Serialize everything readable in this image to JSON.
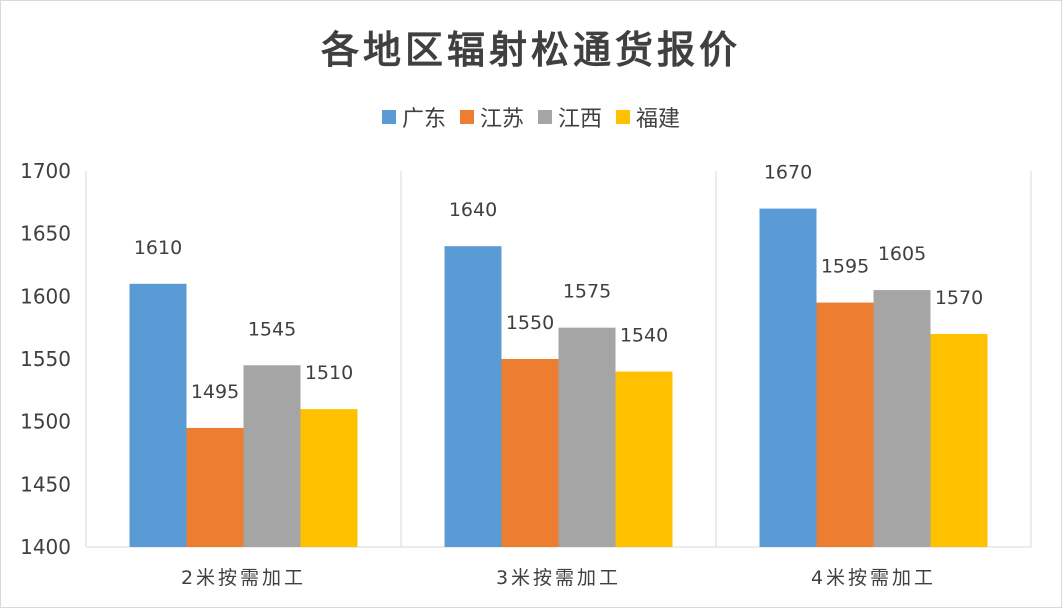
{
  "chart_data": {
    "type": "bar",
    "title": "各地区辐射松通货报价",
    "categories": [
      "2米按需加工",
      "3米按需加工",
      "4米按需加工"
    ],
    "series": [
      {
        "name": "广东",
        "color": "#5b9bd5",
        "values": [
          1610,
          1640,
          1670
        ]
      },
      {
        "name": "江苏",
        "color": "#ed7d31",
        "values": [
          1495,
          1550,
          1595
        ]
      },
      {
        "name": "江西",
        "color": "#a5a5a5",
        "values": [
          1545,
          1575,
          1605
        ]
      },
      {
        "name": "福建",
        "color": "#ffc000",
        "values": [
          1510,
          1540,
          1570
        ]
      }
    ],
    "ylim": [
      1400,
      1700
    ],
    "yticks": [
      1400,
      1450,
      1500,
      1550,
      1600,
      1650,
      1700
    ],
    "legend": "top",
    "data_labels": true,
    "grid": "vertical category separators"
  }
}
